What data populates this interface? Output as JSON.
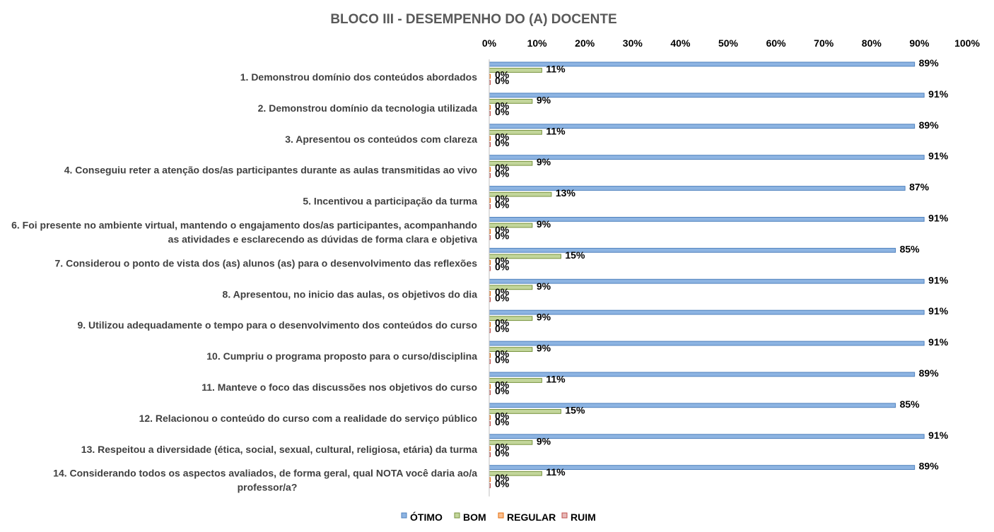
{
  "chart_data": {
    "type": "bar",
    "orientation": "horizontal",
    "title": "BLOCO III - DESEMPENHO DO (A) DOCENTE",
    "xlim": [
      0,
      100
    ],
    "ticks": [
      "0%",
      "10%",
      "20%",
      "30%",
      "40%",
      "50%",
      "60%",
      "70%",
      "80%",
      "90%",
      "100%"
    ],
    "legend_position": "bottom",
    "categories": [
      [
        "1. Demonstrou domínio dos conteúdos abordados"
      ],
      [
        "2. Demonstrou domínio da tecnologia utilizada"
      ],
      [
        "3. Apresentou os conteúdos com clareza"
      ],
      [
        "4. Conseguiu reter a atenção dos/as participantes durante as aulas transmitidas ao vivo"
      ],
      [
        "5. Incentivou a participação da turma"
      ],
      [
        "6. Foi presente no ambiente virtual, mantendo o engajamento dos/as participantes, acompanhando",
        "as atividades e esclarecendo as dúvidas de forma clara e objetiva"
      ],
      [
        "7. Considerou o ponto de vista dos (as) alunos (as) para o desenvolvimento das reflexões"
      ],
      [
        "8. Apresentou, no inicio das aulas, os objetivos do dia"
      ],
      [
        "9. Utilizou adequadamente o tempo para o desenvolvimento dos conteúdos do curso"
      ],
      [
        "10. Cumpriu o programa proposto para o curso/disciplina"
      ],
      [
        "11. Manteve o foco das discussões nos objetivos do curso"
      ],
      [
        "12. Relacionou o conteúdo do curso com a realidade do serviço público"
      ],
      [
        "13. Respeitou a diversidade (ética, social, sexual, cultural, religiosa, etária) da turma"
      ],
      [
        "14. Considerando todos os aspectos avaliados, de forma geral, qual NOTA você daria ao/a",
        "professor/a?"
      ]
    ],
    "series": [
      {
        "name": "ÓTIMO",
        "color": "#8db4e2",
        "edge": "#4f81bd",
        "values": [
          89,
          91,
          89,
          91,
          87,
          91,
          85,
          91,
          91,
          91,
          89,
          85,
          91,
          89
        ]
      },
      {
        "name": "BOM",
        "color": "#c3d69b",
        "edge": "#77933c",
        "values": [
          11,
          9,
          11,
          9,
          13,
          9,
          15,
          9,
          9,
          9,
          11,
          15,
          9,
          11
        ]
      },
      {
        "name": "REGULAR",
        "color": "#fabf8f",
        "edge": "#e46c0a",
        "values": [
          0,
          0,
          0,
          0,
          0,
          0,
          0,
          0,
          0,
          0,
          0,
          0,
          0,
          0
        ]
      },
      {
        "name": "RUIM",
        "color": "#e6b9b8",
        "edge": "#c0504d",
        "values": [
          0,
          0,
          0,
          0,
          0,
          0,
          0,
          0,
          0,
          0,
          0,
          0,
          0,
          0
        ]
      }
    ],
    "value_suffix": "%"
  }
}
